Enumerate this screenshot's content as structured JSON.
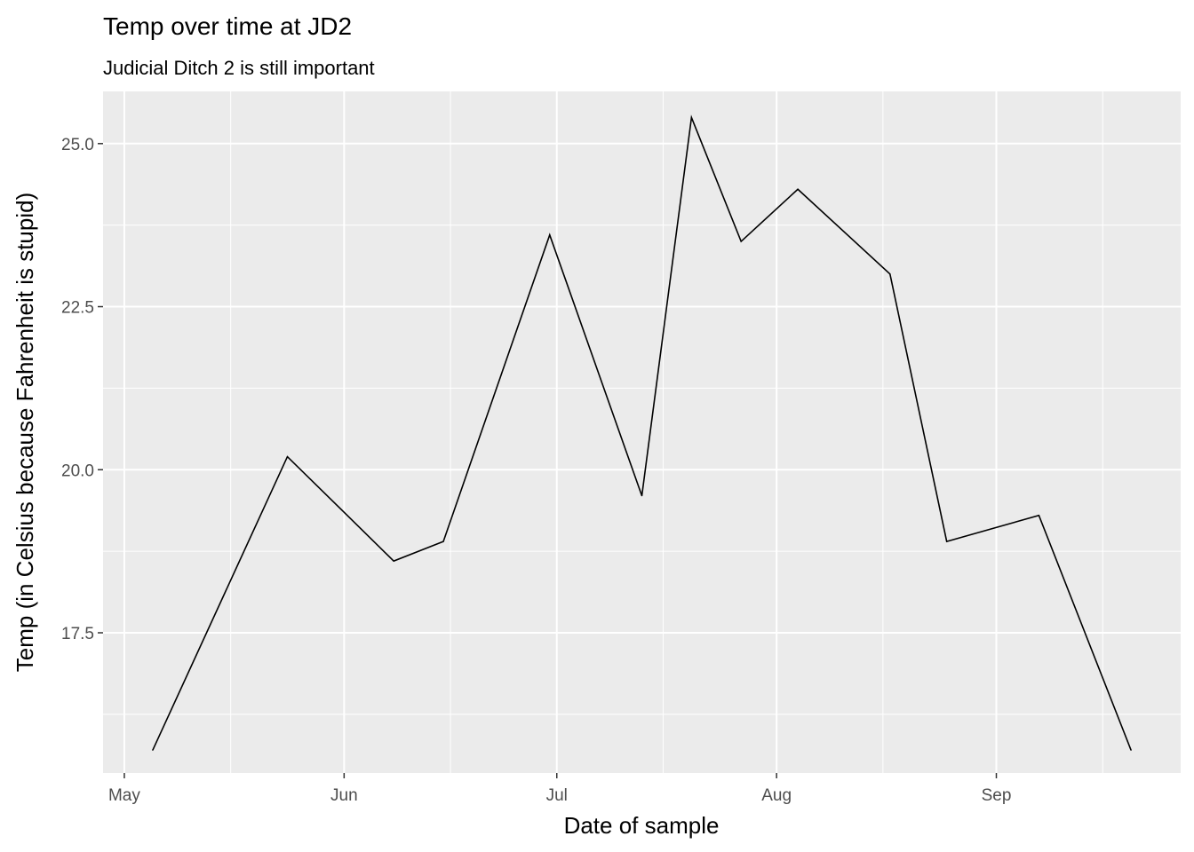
{
  "chart_data": {
    "type": "line",
    "title": "Temp over time at JD2",
    "subtitle": "Judicial Ditch 2 is still important",
    "xlabel": "Date of sample",
    "ylabel": "Temp (in Celsius because Fahrenheit is stupid)",
    "x_ticks": [
      {
        "date": "2019-05-01",
        "label": "May"
      },
      {
        "date": "2019-06-01",
        "label": "Jun"
      },
      {
        "date": "2019-07-01",
        "label": "Jul"
      },
      {
        "date": "2019-08-01",
        "label": "Aug"
      },
      {
        "date": "2019-09-01",
        "label": "Sep"
      }
    ],
    "x_minor_ticks": [
      "2019-05-16",
      "2019-06-16",
      "2019-07-16",
      "2019-08-16",
      "2019-09-16"
    ],
    "y_ticks": [
      17.5,
      20.0,
      22.5,
      25.0
    ],
    "xlim": [
      "2019-04-28",
      "2019-09-27"
    ],
    "ylim": [
      15.35,
      25.8
    ],
    "grid": true,
    "series": [
      {
        "points": [
          {
            "x": "2019-05-05",
            "y": 15.7
          },
          {
            "x": "2019-05-24",
            "y": 20.2
          },
          {
            "x": "2019-06-08",
            "y": 18.6
          },
          {
            "x": "2019-06-15",
            "y": 18.9
          },
          {
            "x": "2019-06-30",
            "y": 23.6
          },
          {
            "x": "2019-07-13",
            "y": 19.6
          },
          {
            "x": "2019-07-20",
            "y": 25.4
          },
          {
            "x": "2019-07-27",
            "y": 23.5
          },
          {
            "x": "2019-08-04",
            "y": 24.3
          },
          {
            "x": "2019-08-17",
            "y": 23.0
          },
          {
            "x": "2019-08-25",
            "y": 18.9
          },
          {
            "x": "2019-09-07",
            "y": 19.3
          },
          {
            "x": "2019-09-20",
            "y": 15.7
          }
        ]
      }
    ]
  },
  "colors": {
    "panel_background": "#ebebeb",
    "grid_line": "#ffffff",
    "series_line": "#000000",
    "tick_text": "#4d4d4d",
    "tick_mark": "#333333"
  }
}
